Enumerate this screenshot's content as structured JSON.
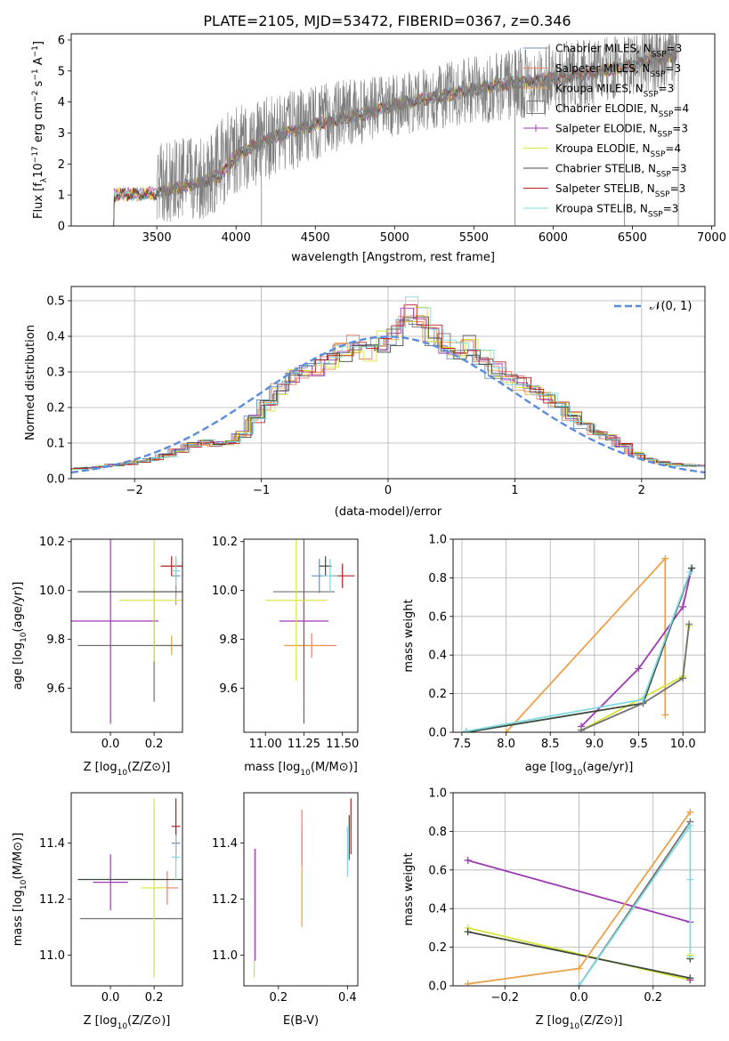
{
  "figure_title": "PLATE=2105, MJD=53472, FIBERID=0367, z=0.346",
  "colors": {
    "chabrier_miles": "#6f8fb0",
    "salpeter_miles": "#e8806a",
    "kroupa_miles": "#e9a24a",
    "chabrier_elodie": "#707070",
    "salpeter_elodie": "#9c3ab4",
    "kroupa_elodie": "#d8e43a",
    "chabrier_stelib": "#3c4a3c",
    "salpeter_stelib": "#b42020",
    "kroupa_stelib": "#80d8e0",
    "normal": "#5b8ddc"
  },
  "chart_data": [
    {
      "id": "spectrum",
      "type": "line",
      "xlabel": "wavelength [Angstrom, rest frame]",
      "ylabel": "Flux [f_λ 10^{-17} erg cm^{-2} s^{-1} A^{-1}]",
      "xlim": [
        2960,
        7020
      ],
      "ylim": [
        0,
        6.2
      ],
      "xticks": [
        3500,
        4000,
        4500,
        5000,
        5500,
        6000,
        6500,
        7000
      ],
      "yticks": [
        0,
        1,
        2,
        3,
        4,
        5,
        6
      ],
      "grid": false,
      "legend_position": "top-right",
      "legend": [
        {
          "label": "Chabrier MILES, N",
          "sub": "SSP",
          "tail": "=3",
          "color_key": "chabrier_miles"
        },
        {
          "label": "Salpeter MILES, N",
          "sub": "SSP",
          "tail": "=3",
          "color_key": "salpeter_miles"
        },
        {
          "label": "Kroupa MILES, N",
          "sub": "SSP",
          "tail": "=3",
          "color_key": "kroupa_miles"
        },
        {
          "label": "Chabrier ELODIE, N",
          "sub": "SSP",
          "tail": "=4",
          "color_key": "chabrier_elodie"
        },
        {
          "label": "Salpeter ELODIE, N",
          "sub": "SSP",
          "tail": "=3",
          "color_key": "salpeter_elodie"
        },
        {
          "label": "Kroupa ELODIE, N",
          "sub": "SSP",
          "tail": "=4",
          "color_key": "kroupa_elodie"
        },
        {
          "label": "Chabrier STELIB, N",
          "sub": "SSP",
          "tail": "=3",
          "color_key": "chabrier_stelib"
        },
        {
          "label": "Salpeter STELIB, N",
          "sub": "SSP",
          "tail": "=3",
          "color_key": "salpeter_stelib"
        },
        {
          "label": "Kroupa STELIB, N",
          "sub": "SSP",
          "tail": "=3",
          "color_key": "kroupa_stelib"
        }
      ],
      "model_continuum": [
        [
          3200,
          1.0
        ],
        [
          3500,
          1.05
        ],
        [
          3700,
          1.3
        ],
        [
          3900,
          1.6
        ],
        [
          4000,
          2.3
        ],
        [
          4200,
          2.8
        ],
        [
          4500,
          3.3
        ],
        [
          4800,
          3.6
        ],
        [
          5000,
          3.9
        ],
        [
          5300,
          4.2
        ],
        [
          5600,
          4.5
        ],
        [
          5900,
          4.7
        ],
        [
          6200,
          4.9
        ],
        [
          6500,
          5.2
        ],
        [
          6750,
          5.5
        ]
      ],
      "observed_continuum": [
        [
          3500,
          1.4
        ],
        [
          3800,
          1.6
        ],
        [
          4000,
          2.4
        ],
        [
          4300,
          3.0
        ],
        [
          4600,
          3.5
        ],
        [
          5000,
          3.9
        ],
        [
          5400,
          4.3
        ],
        [
          5800,
          4.6
        ],
        [
          6200,
          4.9
        ],
        [
          6500,
          5.2
        ],
        [
          6780,
          5.6
        ]
      ],
      "observed_noise_amplitude": [
        [
          3500,
          1.3
        ],
        [
          4000,
          1.5
        ],
        [
          4500,
          1.2
        ],
        [
          5000,
          1.0
        ],
        [
          5500,
          1.1
        ],
        [
          6000,
          1.2
        ],
        [
          6500,
          1.0
        ],
        [
          6780,
          1.2
        ]
      ]
    },
    {
      "id": "residuals",
      "type": "line",
      "xlabel": "(data-model)/error",
      "ylabel": "Normed distribution",
      "xlim": [
        -2.5,
        2.5
      ],
      "ylim": [
        0,
        0.54
      ],
      "xticks": [
        -2,
        -1,
        0,
        1,
        2
      ],
      "yticks": [
        0.0,
        0.1,
        0.2,
        0.3,
        0.4,
        0.5
      ],
      "grid": true,
      "legend_position": "top-right",
      "legend_label": "𝒩(0, 1)",
      "bin_width": 0.1,
      "histogram": [
        0.028,
        0.03,
        0.034,
        0.038,
        0.042,
        0.048,
        0.055,
        0.065,
        0.08,
        0.095,
        0.102,
        0.098,
        0.102,
        0.125,
        0.168,
        0.205,
        0.255,
        0.285,
        0.305,
        0.312,
        0.332,
        0.355,
        0.375,
        0.35,
        0.385,
        0.405,
        0.475,
        0.455,
        0.4,
        0.38,
        0.355,
        0.375,
        0.34,
        0.305,
        0.285,
        0.268,
        0.245,
        0.23,
        0.205,
        0.175,
        0.15,
        0.13,
        0.115,
        0.095,
        0.07,
        0.055,
        0.045,
        0.04,
        0.038,
        0.036
      ]
    },
    {
      "id": "age_vs_Z",
      "type": "scatter",
      "xlabel": "Z [log10(Z/Z⊙)]",
      "ylabel": "age [log10(age/yr)]",
      "xlim": [
        -0.18,
        0.33
      ],
      "ylim": [
        9.42,
        10.21
      ],
      "xticks": [
        0.0,
        0.2
      ],
      "yticks": [
        9.6,
        9.8,
        10.0,
        10.2
      ],
      "points": [
        {
          "color_key": "chabrier_miles",
          "x": 0.3,
          "xerr": 0.02,
          "y": 10.06,
          "yerr": 0.07
        },
        {
          "color_key": "salpeter_miles",
          "x": 0.3,
          "xerr": 0.0,
          "y": 9.98,
          "yerr": 0.04
        },
        {
          "color_key": "kroupa_miles",
          "x": 0.28,
          "xerr": 0.05,
          "y": 9.775,
          "yerr": 0.04
        },
        {
          "color_key": "chabrier_elodie",
          "x": 0.2,
          "xerr": 0.35,
          "y": 9.775,
          "yerr": 0.23
        },
        {
          "color_key": "salpeter_elodie",
          "x": 0.0,
          "xerr": 0.22,
          "y": 9.875,
          "yerr": 0.42
        },
        {
          "color_key": "kroupa_elodie",
          "x": 0.2,
          "xerr": 0.16,
          "y": 9.96,
          "yerr": 0.25
        },
        {
          "color_key": "chabrier_stelib",
          "x": 0.2,
          "xerr": 0.35,
          "y": 9.995,
          "yerr": 0.0
        },
        {
          "color_key": "salpeter_stelib",
          "x": 0.28,
          "xerr": 0.05,
          "y": 10.1,
          "yerr": 0.04
        },
        {
          "color_key": "kroupa_stelib",
          "x": 0.3,
          "xerr": 0.02,
          "y": 10.08,
          "yerr": 0.06
        }
      ]
    },
    {
      "id": "age_vs_mass",
      "type": "scatter",
      "xlabel": "mass [log10(M/M⊙)]",
      "ylabel": "",
      "xlim": [
        10.86,
        11.6
      ],
      "ylim": [
        9.42,
        10.21
      ],
      "xticks": [
        11.0,
        11.25,
        11.5
      ],
      "yticks": [
        9.6,
        9.8,
        10.0,
        10.2
      ],
      "points": [
        {
          "color_key": "chabrier_miles",
          "x": 11.35,
          "xerr": 0.05,
          "y": 10.06,
          "yerr": 0.07
        },
        {
          "color_key": "salpeter_miles",
          "x": 11.3,
          "xerr": 0.16,
          "y": 9.775,
          "yerr": 0.05
        },
        {
          "color_key": "kroupa_miles",
          "x": 11.25,
          "xerr": 0.13,
          "y": 9.775,
          "yerr": 0.2
        },
        {
          "color_key": "chabrier_elodie",
          "x": 11.25,
          "xerr": 0.2,
          "y": 9.995,
          "yerr": 0.0
        },
        {
          "color_key": "salpeter_elodie",
          "x": 11.25,
          "xerr": 0.16,
          "y": 9.875,
          "yerr": 0.42
        },
        {
          "color_key": "kroupa_elodie",
          "x": 11.2,
          "xerr": 0.2,
          "y": 9.96,
          "yerr": 0.33
        },
        {
          "color_key": "chabrier_stelib",
          "x": 11.39,
          "xerr": 0.04,
          "y": 10.1,
          "yerr": 0.04
        },
        {
          "color_key": "salpeter_stelib",
          "x": 11.5,
          "xerr": 0.08,
          "y": 10.06,
          "yerr": 0.05
        },
        {
          "color_key": "kroupa_stelib",
          "x": 11.42,
          "xerr": 0.05,
          "y": 10.06,
          "yerr": 0.07
        }
      ]
    },
    {
      "id": "massweight_vs_age",
      "type": "line",
      "xlabel": "age [log10(age/yr)]",
      "ylabel": "mass weight",
      "xlim": [
        7.4,
        10.25
      ],
      "ylim": [
        0,
        1.0
      ],
      "xticks": [
        7.5,
        8.0,
        8.5,
        9.0,
        9.5,
        10.0
      ],
      "yticks": [
        0.0,
        0.2,
        0.4,
        0.6,
        0.8,
        1.0
      ],
      "grid": true,
      "series": [
        {
          "color_key": "kroupa_miles",
          "x": [
            8.0,
            9.8,
            9.8
          ],
          "y": [
            0.0,
            0.9,
            0.09
          ]
        },
        {
          "color_key": "salpeter_elodie",
          "x": [
            8.85,
            9.5,
            10.0,
            10.1
          ],
          "y": [
            0.03,
            0.33,
            0.65,
            0.85
          ]
        },
        {
          "color_key": "kroupa_elodie",
          "x": [
            8.85,
            10.0,
            10.07
          ],
          "y": [
            0.01,
            0.29,
            0.55
          ]
        },
        {
          "color_key": "chabrier_stelib",
          "x": [
            7.55,
            9.55,
            10.1
          ],
          "y": [
            0.0,
            0.15,
            0.85
          ]
        },
        {
          "color_key": "chabrier_elodie",
          "x": [
            8.85,
            9.55,
            10.0,
            10.07
          ],
          "y": [
            0.01,
            0.15,
            0.28,
            0.56
          ]
        },
        {
          "color_key": "kroupa_stelib",
          "x": [
            7.55,
            9.55,
            10.08
          ],
          "y": [
            0.005,
            0.17,
            0.83
          ]
        }
      ]
    },
    {
      "id": "mass_vs_Z",
      "type": "scatter",
      "xlabel": "Z [log10(Z/Z⊙)]",
      "ylabel": "mass [log10(M/M⊙)]",
      "xlim": [
        -0.18,
        0.33
      ],
      "ylim": [
        10.89,
        11.58
      ],
      "xticks": [
        0.0,
        0.2
      ],
      "yticks": [
        11.0,
        11.2,
        11.4
      ],
      "points": [
        {
          "color_key": "chabrier_miles",
          "x": 0.3,
          "xerr": 0.02,
          "y": 11.4,
          "yerr": 0.06
        },
        {
          "color_key": "salpeter_miles",
          "x": 0.26,
          "xerr": 0.05,
          "y": 11.24,
          "yerr": 0.06
        },
        {
          "color_key": "kroupa_miles",
          "x": 0.28,
          "xerr": 0.02,
          "y": 11.13,
          "yerr": 0.0
        },
        {
          "color_key": "chabrier_elodie",
          "x": 0.2,
          "xerr": 0.34,
          "y": 11.13,
          "yerr": 0.0
        },
        {
          "color_key": "salpeter_elodie",
          "x": 0.0,
          "xerr": 0.08,
          "y": 11.26,
          "yerr": 0.1
        },
        {
          "color_key": "kroupa_elodie",
          "x": 0.2,
          "xerr": 0.06,
          "y": 11.24,
          "yerr": 0.32
        },
        {
          "color_key": "chabrier_stelib",
          "x": 0.2,
          "xerr": 0.35,
          "y": 11.27,
          "yerr": 0.0
        },
        {
          "color_key": "salpeter_stelib",
          "x": 0.3,
          "xerr": 0.02,
          "y": 11.46,
          "yerr": 0.1
        },
        {
          "color_key": "kroupa_stelib",
          "x": 0.3,
          "xerr": 0.02,
          "y": 11.35,
          "yerr": 0.08
        }
      ]
    },
    {
      "id": "mass_vs_ebv",
      "type": "scatter",
      "xlabel": "E(B-V)",
      "ylabel": "",
      "xlim": [
        0.1,
        0.43
      ],
      "ylim": [
        10.89,
        11.58
      ],
      "xticks": [
        0.2,
        0.4
      ],
      "yticks": [
        11.0,
        11.2,
        11.4
      ],
      "points": [
        {
          "color_key": "kroupa_elodie",
          "x": 0.13,
          "y": 11.15,
          "yerr": 0.23
        },
        {
          "color_key": "salpeter_elodie",
          "x": 0.133,
          "y": 11.18,
          "yerr": 0.2
        },
        {
          "color_key": "kroupa_miles",
          "x": 0.268,
          "y": 11.28,
          "yerr": 0.18
        },
        {
          "color_key": "salpeter_miles",
          "x": 0.268,
          "y": 11.42,
          "yerr": 0.1
        },
        {
          "color_key": "kroupa_stelib",
          "x": 0.4,
          "y": 11.37,
          "yerr": 0.09
        },
        {
          "color_key": "chabrier_stelib",
          "x": 0.405,
          "y": 11.42,
          "yerr": 0.08
        },
        {
          "color_key": "salpeter_stelib",
          "x": 0.41,
          "y": 11.46,
          "yerr": 0.1
        }
      ]
    },
    {
      "id": "massweight_vs_Z",
      "type": "line",
      "xlabel": "Z [log10(Z/Z⊙)]",
      "ylabel": "mass weight",
      "xlim": [
        -0.34,
        0.34
      ],
      "ylim": [
        0,
        1.0
      ],
      "xticks": [
        -0.2,
        0.0,
        0.2
      ],
      "yticks": [
        0.0,
        0.2,
        0.4,
        0.6,
        0.8,
        1.0
      ],
      "grid": true,
      "series": [
        {
          "color_key": "salpeter_elodie",
          "x": [
            -0.3,
            0.3
          ],
          "y": [
            0.65,
            0.33
          ]
        },
        {
          "color_key": "kroupa_elodie",
          "x": [
            -0.3,
            0.3
          ],
          "y": [
            0.3,
            0.03
          ]
        },
        {
          "color_key": "chabrier_stelib",
          "x": [
            -0.3,
            0.3
          ],
          "y": [
            0.28,
            0.04
          ]
        },
        {
          "color_key": "kroupa_miles",
          "x": [
            -0.3,
            0.0,
            0.3
          ],
          "y": [
            0.01,
            0.09,
            0.9
          ]
        },
        {
          "color_key": "chabrier_elodie",
          "x": [
            0.0,
            0.3
          ],
          "y": [
            0.0,
            0.85
          ]
        },
        {
          "color_key": "kroupa_stelib",
          "x": [
            0.0,
            0.3,
            0.3,
            0.3
          ],
          "y": [
            0.0,
            0.83,
            0.55,
            0.15
          ]
        }
      ],
      "markers": [
        {
          "color_key": "salpeter_elodie",
          "x": 0.3,
          "y": 0.03
        },
        {
          "color_key": "chabrier_stelib",
          "x": 0.3,
          "y": 0.14
        },
        {
          "color_key": "kroupa_elodie",
          "x": 0.3,
          "y": 0.16
        }
      ]
    }
  ]
}
